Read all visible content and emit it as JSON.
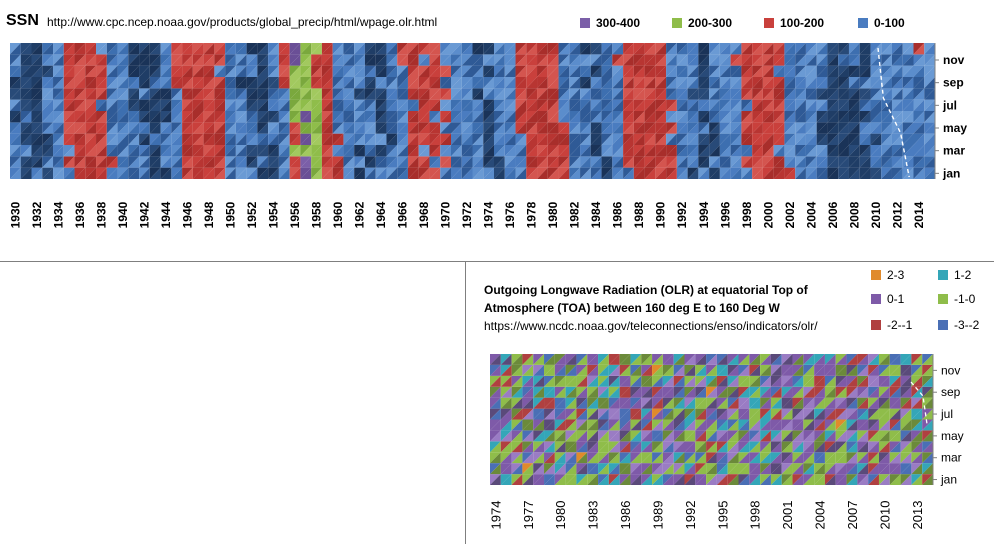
{
  "chart_data": [
    {
      "type": "heatmap",
      "title": "SSN",
      "subtitle": "http://www.cpc.ncep.noaa.gov/products/global_precip/html/wpage.olr.html",
      "legend": {
        "placement": "top-right",
        "entries": [
          {
            "label": "300-400",
            "color": "#7b5fa8"
          },
          {
            "label": "200-300",
            "color": "#8fbd4a"
          },
          {
            "label": "100-200",
            "color": "#c9403c"
          },
          {
            "label": "0-100",
            "color": "#4a7cc0"
          }
        ]
      },
      "x_ticks": [
        "1930",
        "1932",
        "1934",
        "1936",
        "1938",
        "1940",
        "1942",
        "1944",
        "1946",
        "1948",
        "1950",
        "1952",
        "1954",
        "1956",
        "1958",
        "1960",
        "1962",
        "1964",
        "1966",
        "1968",
        "1970",
        "1972",
        "1974",
        "1976",
        "1978",
        "1980",
        "1982",
        "1984",
        "1986",
        "1988",
        "1990",
        "1992",
        "1994",
        "1996",
        "1998",
        "2000",
        "2002",
        "2004",
        "2006",
        "2008",
        "2010",
        "2012",
        "2014"
      ],
      "y_ticks": [
        "jan",
        "mar",
        "may",
        "jul",
        "sep",
        "nov"
      ],
      "x_range": [
        1930,
        2015
      ],
      "annual_level": [
        0.3,
        0.15,
        0.08,
        0.1,
        0.45,
        1.0,
        1.25,
        1.4,
        1.15,
        0.9,
        0.6,
        0.45,
        0.25,
        0.15,
        0.15,
        0.35,
        1.2,
        1.8,
        1.4,
        1.35,
        0.9,
        0.55,
        0.3,
        0.15,
        0.05,
        0.4,
        1.5,
        2.7,
        2.1,
        1.6,
        1.1,
        0.55,
        0.35,
        0.2,
        0.15,
        0.25,
        0.5,
        1.0,
        1.1,
        1.05,
        1.05,
        0.8,
        0.5,
        0.35,
        0.2,
        0.25,
        0.6,
        0.75,
        1.5,
        1.55,
        1.4,
        1.15,
        0.7,
        0.45,
        0.3,
        0.2,
        0.45,
        0.95,
        1.55,
        1.45,
        1.45,
        1.05,
        0.65,
        0.35,
        0.2,
        0.15,
        0.4,
        0.65,
        0.95,
        1.2,
        1.15,
        1.05,
        1.05,
        0.65,
        0.4,
        0.3,
        0.1,
        0.05,
        0.08,
        0.15,
        0.25,
        0.5,
        0.7,
        0.65,
        0.75,
        0.9
      ]
    },
    {
      "type": "heatmap",
      "title": "Outgoing Longwave Radiation (OLR) at equatorial Top of Atmosphere (TOA) between 160 deg E to 160 Deg W",
      "subtitle": "https://www.ncdc.noaa.gov/teleconnections/enso/indicators/olr/",
      "legend": {
        "placement": "top-right",
        "entries": [
          {
            "label": "2-3",
            "color": "#e08a2c"
          },
          {
            "label": "1-2",
            "color": "#34a6b8"
          },
          {
            "label": "0-1",
            "color": "#7e5aa8"
          },
          {
            "label": "-1-0",
            "color": "#8fbd4a"
          },
          {
            "label": "-2--1",
            "color": "#b04040"
          },
          {
            "label": "-3--2",
            "color": "#4a6fb5"
          }
        ]
      },
      "x_ticks": [
        "1974",
        "1977",
        "1980",
        "1983",
        "1986",
        "1989",
        "1992",
        "1995",
        "1998",
        "2001",
        "2004",
        "2007",
        "2010",
        "2013"
      ],
      "y_ticks": [
        "jan",
        "mar",
        "may",
        "jul",
        "sep",
        "nov"
      ],
      "x_range": [
        1974,
        2015
      ]
    }
  ]
}
